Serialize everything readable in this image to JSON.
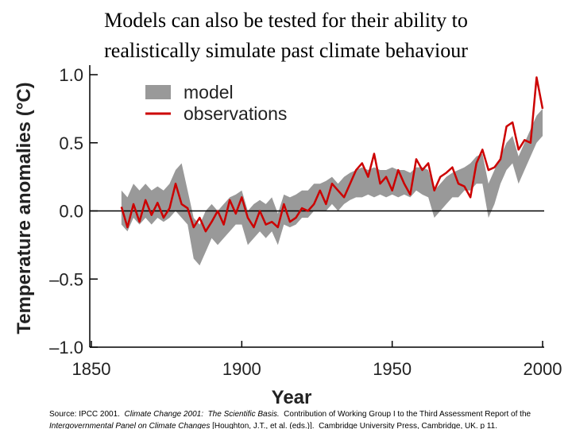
{
  "slide_title": [
    "Models can also be tested for their ability to",
    "realistically simulate past climate behaviour"
  ],
  "chart_data": {
    "type": "band-line",
    "x_label": "Year",
    "y_label": "Temperature anomalies (°C)",
    "xlim": [
      1850,
      2000
    ],
    "ylim": [
      -1.0,
      1.0
    ],
    "xticks": [
      1850,
      1900,
      1950,
      2000
    ],
    "yticks": [
      {
        "value": 1.0,
        "label": "1.0"
      },
      {
        "value": 0.5,
        "label": "0.5"
      },
      {
        "value": 0.0,
        "label": "0.0"
      },
      {
        "value": -0.5,
        "label": "–0.5"
      },
      {
        "value": -1.0,
        "label": "–1.0"
      }
    ],
    "zero_line": true,
    "legend": "upper left",
    "x": [
      1860,
      1862,
      1864,
      1866,
      1868,
      1870,
      1872,
      1874,
      1876,
      1878,
      1880,
      1882,
      1884,
      1886,
      1888,
      1890,
      1892,
      1894,
      1896,
      1898,
      1900,
      1902,
      1904,
      1906,
      1908,
      1910,
      1912,
      1914,
      1916,
      1918,
      1920,
      1922,
      1924,
      1926,
      1928,
      1930,
      1932,
      1934,
      1936,
      1938,
      1940,
      1942,
      1944,
      1946,
      1948,
      1950,
      1952,
      1954,
      1956,
      1958,
      1960,
      1962,
      1964,
      1966,
      1968,
      1970,
      1972,
      1974,
      1976,
      1978,
      1980,
      1982,
      1984,
      1986,
      1988,
      1990,
      1992,
      1994,
      1996,
      1998,
      2000
    ],
    "series": [
      {
        "name": "model",
        "color": "#999999",
        "low": [
          -0.1,
          -0.15,
          -0.05,
          -0.1,
          -0.05,
          -0.1,
          -0.05,
          -0.08,
          -0.05,
          0.0,
          -0.05,
          -0.1,
          -0.35,
          -0.4,
          -0.3,
          -0.2,
          -0.25,
          -0.2,
          -0.15,
          -0.1,
          -0.1,
          -0.25,
          -0.2,
          -0.15,
          -0.2,
          -0.15,
          -0.25,
          -0.1,
          -0.12,
          -0.1,
          -0.05,
          -0.05,
          0.0,
          0.0,
          0.0,
          0.05,
          0.0,
          0.05,
          0.08,
          0.1,
          0.1,
          0.12,
          0.1,
          0.12,
          0.1,
          0.12,
          0.1,
          0.12,
          0.1,
          0.15,
          0.12,
          0.1,
          -0.05,
          0.0,
          0.05,
          0.1,
          0.1,
          0.15,
          0.15,
          0.2,
          0.2,
          -0.05,
          0.05,
          0.2,
          0.3,
          0.35,
          0.2,
          0.3,
          0.4,
          0.5,
          0.55
        ],
        "high": [
          0.15,
          0.1,
          0.2,
          0.15,
          0.2,
          0.15,
          0.18,
          0.15,
          0.2,
          0.3,
          0.35,
          0.15,
          -0.05,
          -0.1,
          0.0,
          0.05,
          0.0,
          0.05,
          0.1,
          0.12,
          0.15,
          0.0,
          0.05,
          0.08,
          0.05,
          0.1,
          -0.02,
          0.12,
          0.1,
          0.12,
          0.15,
          0.15,
          0.2,
          0.2,
          0.22,
          0.25,
          0.2,
          0.25,
          0.28,
          0.3,
          0.32,
          0.3,
          0.32,
          0.3,
          0.3,
          0.32,
          0.3,
          0.3,
          0.28,
          0.32,
          0.32,
          0.3,
          0.15,
          0.2,
          0.25,
          0.28,
          0.3,
          0.32,
          0.35,
          0.4,
          0.42,
          0.2,
          0.3,
          0.4,
          0.5,
          0.55,
          0.4,
          0.5,
          0.6,
          0.7,
          0.75
        ]
      },
      {
        "name": "observations",
        "color": "#cc0000",
        "values": [
          0.03,
          -0.12,
          0.05,
          -0.08,
          0.08,
          -0.03,
          0.06,
          -0.05,
          0.02,
          0.2,
          0.05,
          0.02,
          -0.12,
          -0.05,
          -0.15,
          -0.08,
          0.0,
          -0.1,
          0.08,
          -0.02,
          0.1,
          -0.05,
          -0.12,
          0.0,
          -0.1,
          -0.08,
          -0.12,
          0.05,
          -0.08,
          -0.05,
          0.02,
          0.0,
          0.05,
          0.15,
          0.05,
          0.2,
          0.15,
          0.1,
          0.2,
          0.3,
          0.35,
          0.25,
          0.42,
          0.2,
          0.25,
          0.15,
          0.3,
          0.2,
          0.12,
          0.38,
          0.3,
          0.35,
          0.15,
          0.25,
          0.28,
          0.32,
          0.2,
          0.18,
          0.1,
          0.35,
          0.45,
          0.3,
          0.32,
          0.38,
          0.62,
          0.65,
          0.45,
          0.52,
          0.5,
          0.98,
          0.75
        ]
      }
    ]
  },
  "source": {
    "line1": [
      {
        "text": "Source: IPCC 2001.  ",
        "italic": false
      },
      {
        "text": "Climate Change 2001:  The Scientific Basis.",
        "italic": true
      },
      {
        "text": "  Contribution of Working Group I to the Third Assessment Report of the",
        "italic": false
      }
    ],
    "line2": [
      {
        "text": "Intergovernmental Panel on Climate Changes",
        "italic": true
      },
      {
        "text": " [Houghton, J.T., et al. (eds.)].  Cambridge University Press, Cambridge, UK. p 11.",
        "italic": false
      }
    ]
  }
}
